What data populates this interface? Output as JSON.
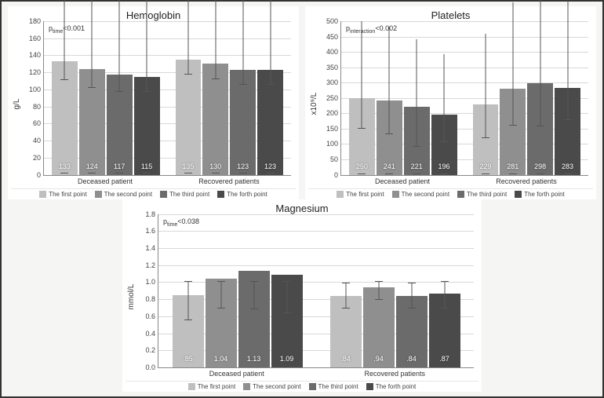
{
  "figure": {
    "background": "#f5f5f3",
    "panel_background": "#ffffff",
    "grid_color": "#d8d8d8",
    "axis_color": "#888888",
    "text_color": "#333333",
    "series_colors": [
      "#bfbfbf",
      "#8f8f8f",
      "#6b6b6b",
      "#4a4a4a"
    ],
    "series_labels": [
      "The first point",
      "The second point",
      "The third point",
      "The forth point"
    ],
    "title_fontsize": 13,
    "tick_fontsize": 9,
    "legend_fontsize": 8,
    "barlabel_fontsize": 9
  },
  "panels": {
    "hemoglobin": {
      "title": "Hemoglobin",
      "ylabel": "g/L",
      "annotation": "p_time <0.001",
      "annotation_sub": "time",
      "ylim": [
        0,
        180
      ],
      "ytick_step": 20,
      "groups": [
        "Deceased patient",
        "Recovered patients"
      ],
      "values": [
        [
          133,
          124,
          117,
          115
        ],
        [
          135,
          130,
          123,
          123
        ]
      ],
      "value_labels": [
        [
          "133",
          "124",
          "117",
          "115"
        ],
        [
          "135",
          "130",
          "123",
          "123"
        ]
      ],
      "errors": [
        [
          22,
          22,
          20,
          18
        ],
        [
          18,
          18,
          18,
          18
        ]
      ]
    },
    "platelets": {
      "title": "Platelets",
      "ylabel": "x10⁹/L",
      "annotation": "p_interaction <0.002",
      "annotation_sub": "interaction",
      "ylim": [
        0,
        500
      ],
      "ytick_step": 50,
      "groups": [
        "Deceased patient",
        "Recovered patients"
      ],
      "values": [
        [
          250,
          241,
          221,
          196
        ],
        [
          229,
          281,
          298,
          283
        ]
      ],
      "value_labels": [
        [
          "250",
          "241",
          "221",
          "196"
        ],
        [
          "229",
          "281",
          "298",
          "283"
        ]
      ],
      "errors": [
        [
          100,
          110,
          130,
          90
        ],
        [
          110,
          120,
          140,
          105
        ]
      ]
    },
    "magnesium": {
      "title": "Magnesium",
      "ylabel": "mmol/L",
      "annotation": "p_time <0.038",
      "annotation_sub": "time",
      "ylim": [
        0.0,
        1.8
      ],
      "ytick_step": 0.2,
      "groups": [
        "Deceased patient",
        "Recovered patients"
      ],
      "values": [
        [
          0.85,
          1.04,
          1.13,
          1.09
        ],
        [
          0.84,
          0.94,
          0.84,
          0.87
        ]
      ],
      "value_labels": [
        [
          ".85",
          "1.04",
          "1.13",
          "1.09"
        ],
        [
          ".84",
          ".94",
          ".84",
          ".87"
        ]
      ],
      "errors": [
        [
          0.3,
          0.35,
          0.45,
          0.45
        ],
        [
          0.15,
          0.15,
          0.15,
          0.18
        ]
      ]
    }
  }
}
